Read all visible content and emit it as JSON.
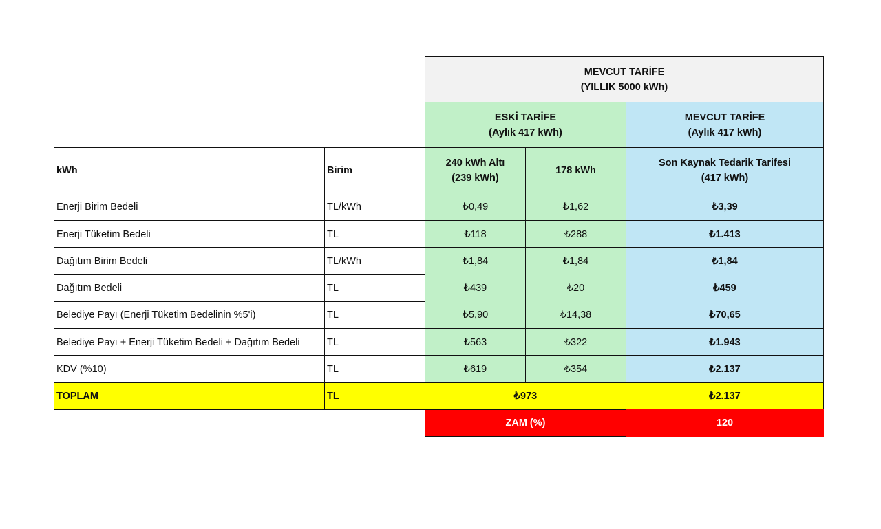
{
  "header": {
    "top_title": "MEVCUT TARİFE\n(YILLIK 5000 kWh)",
    "eski_group": "ESKİ TARİFE\n(Aylık 417 kWh)",
    "mevcut_group": "MEVCUT TARİFE\n(Aylık 417 kWh)",
    "col_kwh": "kWh",
    "col_birim": "Birim",
    "col_240": "240  kWh Altı\n(239 kWh)",
    "col_178": "178 kWh",
    "col_son": "Son Kaynak Tedarik Tarifesi\n(417 kWh)"
  },
  "rows": [
    {
      "label": "Enerji Birim Bedeli",
      "unit": "TL/kWh",
      "a": "₺0,49",
      "b": "₺1,62",
      "c": "₺3,39"
    },
    {
      "label": "Enerji Tüketim Bedeli",
      "unit": "TL",
      "a": "₺118",
      "b": "₺288",
      "c": "₺1.413"
    },
    {
      "label": "Dağıtım Birim Bedeli",
      "unit": "TL/kWh",
      "a": "₺1,84",
      "b": "₺1,84",
      "c": "₺1,84"
    },
    {
      "label": "Dağıtım Bedeli",
      "unit": "TL",
      "a": "₺439",
      "b": "₺20",
      "c": "₺459"
    },
    {
      "label": "Belediye Payı (Enerji Tüketim Bedelinin %5'i)",
      "unit": "TL",
      "a": "₺5,90",
      "b": "₺14,38",
      "c": "₺70,65"
    },
    {
      "label": "Belediye Payı + Enerji Tüketim Bedeli + Dağıtım Bedeli",
      "unit": "TL",
      "a": "₺563",
      "b": "₺322",
      "c": "₺1.943"
    },
    {
      "label": "KDV (%10)",
      "unit": "TL",
      "a": "₺619",
      "b": "₺354",
      "c": "₺2.137"
    }
  ],
  "total": {
    "label": "TOPLAM",
    "unit": "TL",
    "eski": "₺973",
    "mevcut": "₺2.137"
  },
  "zam": {
    "label": "ZAM (%)",
    "value": "120"
  },
  "colors": {
    "green": "#c1f0c8",
    "blue": "#c0e6f5",
    "yellow": "#ffff00",
    "red": "#ff0000",
    "header": "#f2f2f2"
  }
}
